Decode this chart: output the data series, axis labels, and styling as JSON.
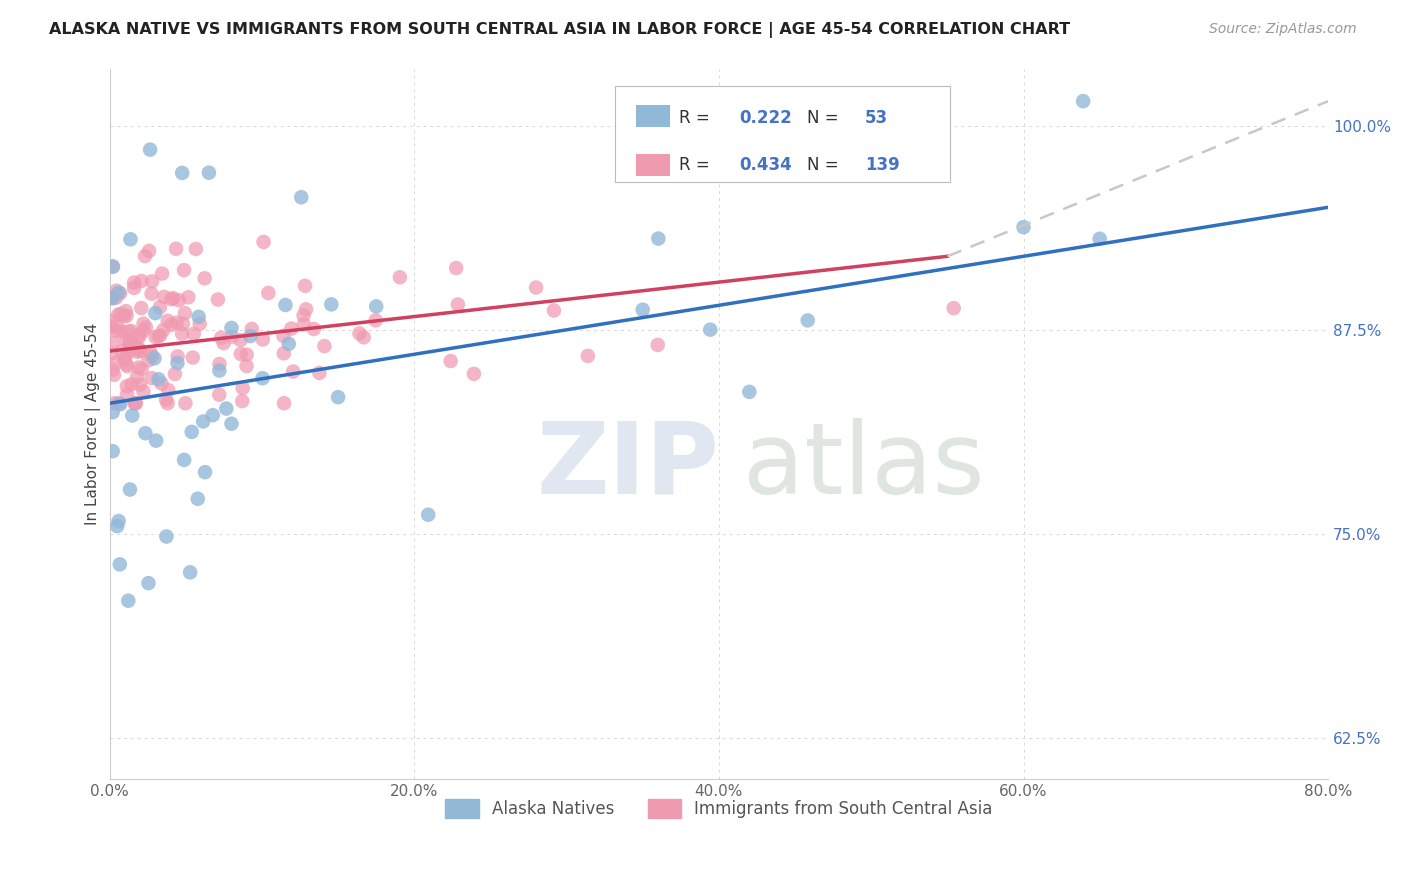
{
  "title": "ALASKA NATIVE VS IMMIGRANTS FROM SOUTH CENTRAL ASIA IN LABOR FORCE | AGE 45-54 CORRELATION CHART",
  "source": "Source: ZipAtlas.com",
  "xlim": [
    0.0,
    80.0
  ],
  "ylim": [
    60.0,
    103.5
  ],
  "ylabel_vals": [
    62.5,
    75.0,
    87.5,
    100.0
  ],
  "xlabel_vals": [
    0,
    20,
    40,
    60,
    80
  ],
  "blue_R": 0.222,
  "blue_N": 53,
  "pink_R": 0.434,
  "pink_N": 139,
  "blue_color": "#92b8d8",
  "pink_color": "#f09ab0",
  "blue_line_color": "#3070c0",
  "pink_line_color": "#d04060",
  "dashed_line_color": "#c8c8c8",
  "legend_blue": "Alaska Natives",
  "legend_pink": "Immigrants from South Central Asia",
  "background_color": "#ffffff",
  "grid_color": "#d8d8d8",
  "title_color": "#222222",
  "source_color": "#999999",
  "tick_color_y": "#4472c4",
  "tick_color_x": "#666666",
  "ylabel_text": "In Labor Force | Age 45-54",
  "blue_seed": 12,
  "pink_seed": 7,
  "blue_intercept": 83.0,
  "blue_slope": 0.18,
  "blue_noise": 7.0,
  "pink_intercept": 86.5,
  "pink_slope": 0.09,
  "pink_noise": 2.2
}
